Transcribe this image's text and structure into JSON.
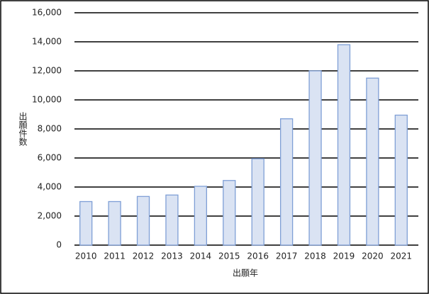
{
  "chart_data": {
    "type": "bar",
    "y_label": "出願件数",
    "x_label": "出願年",
    "categories": [
      "2010",
      "2011",
      "2012",
      "2013",
      "2014",
      "2015",
      "2016",
      "2017",
      "2018",
      "2019",
      "2020",
      "2021"
    ],
    "values": [
      3000,
      3000,
      3350,
      3450,
      4050,
      4450,
      5950,
      8700,
      12000,
      13800,
      11500,
      8950
    ],
    "color": "#dae3f3",
    "edge_color": "#7f9fd6",
    "ylim": [
      0,
      16000
    ],
    "yticks": [
      0,
      {
        "value": 2000,
        "label": "2,000"
      },
      {
        "value": 4000,
        "label": "4,000"
      },
      {
        "value": 6000,
        "label": "6,000"
      },
      {
        "value": 8000,
        "label": "8,000"
      },
      {
        "value": 10000,
        "label": "10,000"
      },
      {
        "value": 12000,
        "label": "12,000"
      },
      {
        "value": 14000,
        "label": "14,000"
      },
      {
        "value": 16000,
        "label": "16,000"
      }
    ],
    "grid": true
  }
}
